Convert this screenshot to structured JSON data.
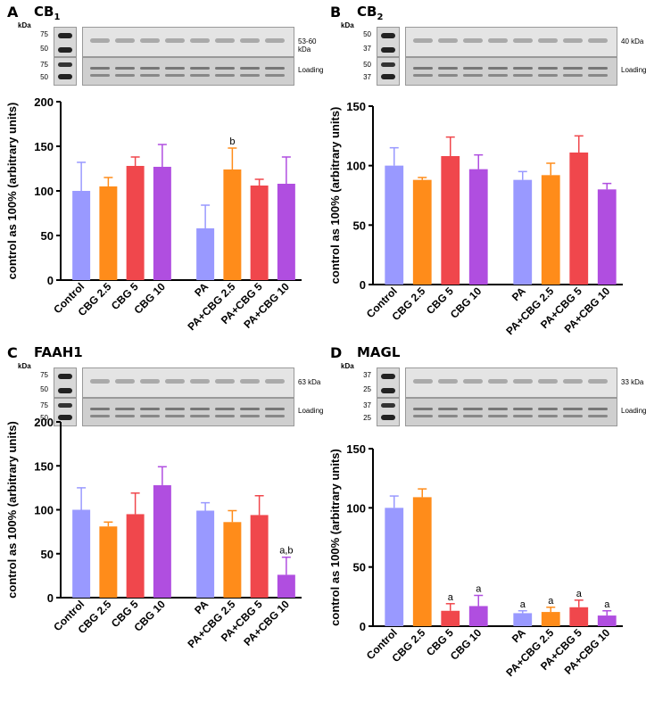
{
  "colors": {
    "Control": "#9999ff",
    "CBG 2.5": "#ff8c1a",
    "CBG 5": "#f0474c",
    "CBG 10": "#b04ee0",
    "PA": "#9999ff",
    "PA+CBG 2.5": "#ff8c1a",
    "PA+CBG 5": "#f0474c",
    "PA+CBG 10": "#b04ee0"
  },
  "blot_common": {
    "kda_label": "kDa",
    "loading_label": "Loading"
  },
  "panels": [
    {
      "letter": "A",
      "protein": "CB",
      "sub": "1",
      "band_label": "53-60 kDa",
      "markers_top": [
        "75",
        "50"
      ],
      "markers_bottom": [
        "75",
        "50"
      ]
    },
    {
      "letter": "B",
      "protein": "CB",
      "sub": "2",
      "band_label": "40 kDa",
      "markers_top": [
        "50",
        "37"
      ],
      "markers_bottom": [
        "50",
        "37"
      ]
    },
    {
      "letter": "C",
      "protein": "FAAH1",
      "sub": "",
      "band_label": "63 kDa",
      "markers_top": [
        "75",
        "50"
      ],
      "markers_bottom": [
        "75",
        "50"
      ]
    },
    {
      "letter": "D",
      "protein": "MAGL",
      "sub": "",
      "band_label": "33 kDa",
      "markers_top": [
        "37",
        "25"
      ],
      "markers_bottom": [
        "37",
        "25"
      ]
    }
  ],
  "chart_data": [
    {
      "type": "bar",
      "panel": "A",
      "ylabel": "control as 100% (arbitrary units)",
      "ylim": [
        0,
        200
      ],
      "yticks": [
        0,
        50,
        100,
        150,
        200
      ],
      "categories": [
        "Control",
        "CBG 2.5",
        "CBG 5",
        "CBG 10",
        "PA",
        "PA+CBG 2.5",
        "PA+CBG 5",
        "PA+CBG 10"
      ],
      "values": [
        100,
        105,
        128,
        127,
        58,
        124,
        106,
        108
      ],
      "errors": [
        32,
        10,
        10,
        25,
        26,
        24,
        7,
        30
      ],
      "annotations": [
        "",
        "",
        "",
        "",
        "",
        "b",
        "",
        ""
      ]
    },
    {
      "type": "bar",
      "panel": "B",
      "ylabel": "control as 100% (arbitrary units)",
      "ylim": [
        0,
        150
      ],
      "yticks": [
        0,
        50,
        100,
        150
      ],
      "categories": [
        "Control",
        "CBG 2.5",
        "CBG 5",
        "CBG 10",
        "PA",
        "PA+CBG 2.5",
        "PA+CBG 5",
        "PA+CBG 10"
      ],
      "values": [
        100,
        88,
        108,
        97,
        88,
        92,
        111,
        80
      ],
      "errors": [
        15,
        2,
        16,
        12,
        7,
        10,
        14,
        5
      ],
      "annotations": [
        "",
        "",
        "",
        "",
        "",
        "",
        "",
        ""
      ]
    },
    {
      "type": "bar",
      "panel": "C",
      "ylabel": "control as 100% (arbitrary units)",
      "ylim": [
        0,
        200
      ],
      "yticks": [
        0,
        50,
        100,
        150,
        200
      ],
      "categories": [
        "Control",
        "CBG 2.5",
        "CBG 5",
        "CBG 10",
        "PA",
        "PA+CBG 2.5",
        "PA+CBG 5",
        "PA+CBG 10"
      ],
      "values": [
        100,
        81,
        95,
        128,
        99,
        86,
        94,
        26
      ],
      "errors": [
        25,
        5,
        24,
        21,
        9,
        13,
        22,
        20
      ],
      "annotations": [
        "",
        "",
        "",
        "",
        "",
        "",
        "",
        "a,b"
      ]
    },
    {
      "type": "bar",
      "panel": "D",
      "ylabel": "control as 100% (arbitrary units)",
      "ylim": [
        0,
        150
      ],
      "yticks": [
        0,
        50,
        100,
        150
      ],
      "categories": [
        "Control",
        "CBG 2.5",
        "CBG 5",
        "CBG 10",
        "PA",
        "PA+CBG 2.5",
        "PA+CBG 5",
        "PA+CBG 10"
      ],
      "values": [
        100,
        109,
        13,
        17,
        11,
        12,
        16,
        9
      ],
      "errors": [
        10,
        7,
        6,
        9,
        2,
        4,
        6,
        4
      ],
      "annotations": [
        "",
        "",
        "a",
        "a",
        "a",
        "a",
        "a",
        "a"
      ]
    }
  ]
}
